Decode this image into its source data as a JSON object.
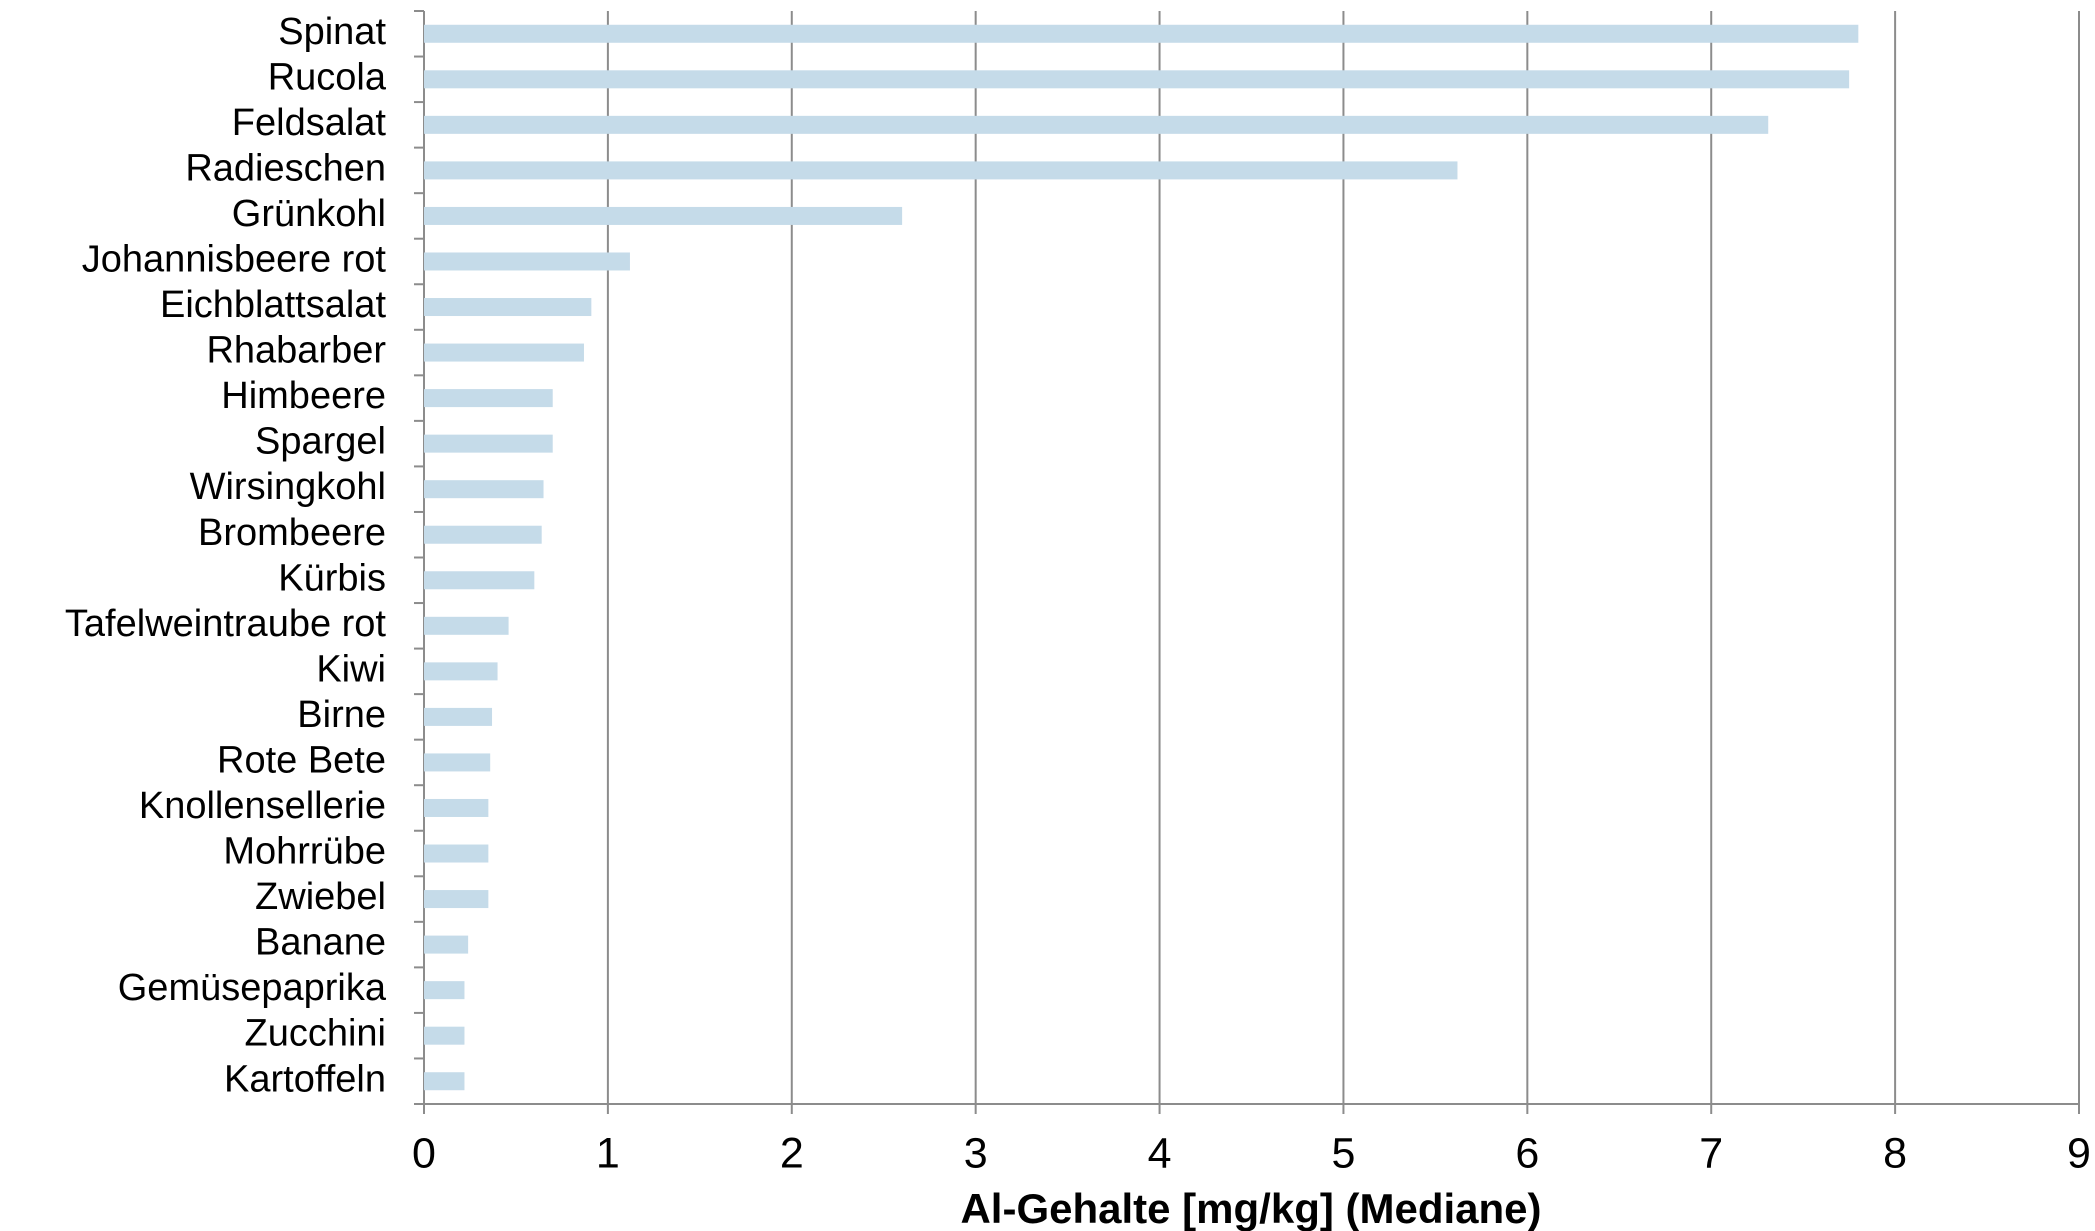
{
  "chart_data": {
    "type": "bar",
    "orientation": "horizontal",
    "x_label": "Al-Gehalte [mg/kg] (Mediane)",
    "categories": [
      "Spinat",
      "Rucola",
      "Feldsalat",
      "Radieschen",
      "Grünkohl",
      "Johannisbeere rot",
      "Eichblattsalat",
      "Rhabarber",
      "Himbeere",
      "Spargel",
      "Wirsingkohl",
      "Brombeere",
      "Kürbis",
      "Tafelweintraube rot",
      "Kiwi",
      "Birne",
      "Rote Bete",
      "Knollensellerie",
      "Mohrrübe",
      "Zwiebel",
      "Banane",
      "Gemüsepaprika",
      "Zucchini",
      "Kartoffeln"
    ],
    "values": [
      7.8,
      7.75,
      7.31,
      5.62,
      2.6,
      1.12,
      0.91,
      0.87,
      0.7,
      0.7,
      0.65,
      0.64,
      0.6,
      0.46,
      0.4,
      0.37,
      0.36,
      0.35,
      0.35,
      0.35,
      0.24,
      0.22,
      0.22,
      0.22
    ],
    "color": "#c5dbe9",
    "xlim": [
      0,
      9
    ],
    "xticks": [
      0,
      1,
      2,
      3,
      4,
      5,
      6,
      7,
      8,
      9
    ],
    "grid": true
  }
}
